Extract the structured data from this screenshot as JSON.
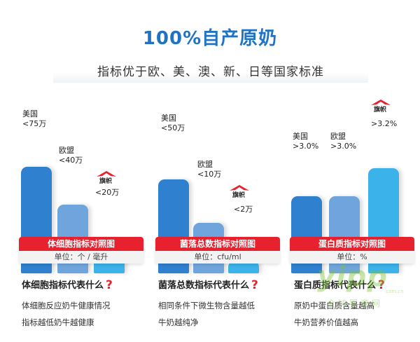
{
  "header": {
    "title": "100%自产原奶",
    "subtitle": "指标优于欧、美、澳、新、日等国家标准"
  },
  "colors": {
    "brand_red": "#e8212e",
    "title_blue": "#1f73c4",
    "bar_dark": "#2f80cf",
    "bar_mid": "#6fa4dc",
    "bar_cyan": "#3bb2ea"
  },
  "logo": {
    "text": "旗帜",
    "icon": "flag-logo-icon"
  },
  "panels": [
    {
      "bars": [
        {
          "label_line1": "美国",
          "label_line2": "<75万"
        },
        {
          "label_line1": "欧盟",
          "label_line2": "<40万"
        },
        {
          "label_line1": "",
          "label_line2": "<20万"
        }
      ],
      "banner_title": "体细胞指标对照图",
      "banner_unit": "单位：个 / 毫升",
      "question": "体细胞指标代表什么",
      "desc_line1": "体细胞反应奶牛健康情况",
      "desc_line2": "指标越低奶牛越健康"
    },
    {
      "bars": [
        {
          "label_line1": "美国",
          "label_line2": "<50万"
        },
        {
          "label_line1": "欧盟",
          "label_line2": "<10万"
        },
        {
          "label_line1": "",
          "label_line2": "<2万"
        }
      ],
      "banner_title": "菌落总数指标对照图",
      "banner_unit": "单位：cfu/ml",
      "question": "菌落总数指标代表什么",
      "desc_line1": "相同条件下微生物含量越低",
      "desc_line2": "牛奶越纯净"
    },
    {
      "bars": [
        {
          "label_line1": "美国",
          "label_line2": ">3.0%"
        },
        {
          "label_line1": "欧盟",
          "label_line2": ">3.0%"
        },
        {
          "label_line1": "",
          "label_line2": ">3.2%"
        }
      ],
      "banner_title": "蛋白质指标对照图",
      "banner_unit": "单位：%",
      "question": "蛋白质指标代表什么",
      "desc_line1": "原奶中蛋白质含量越高",
      "desc_line2": "牛奶营养价值越高"
    }
  ],
  "watermark": {
    "main": "yipp",
    "com": ".com.cn",
    "cn": "全球婴童网"
  }
}
